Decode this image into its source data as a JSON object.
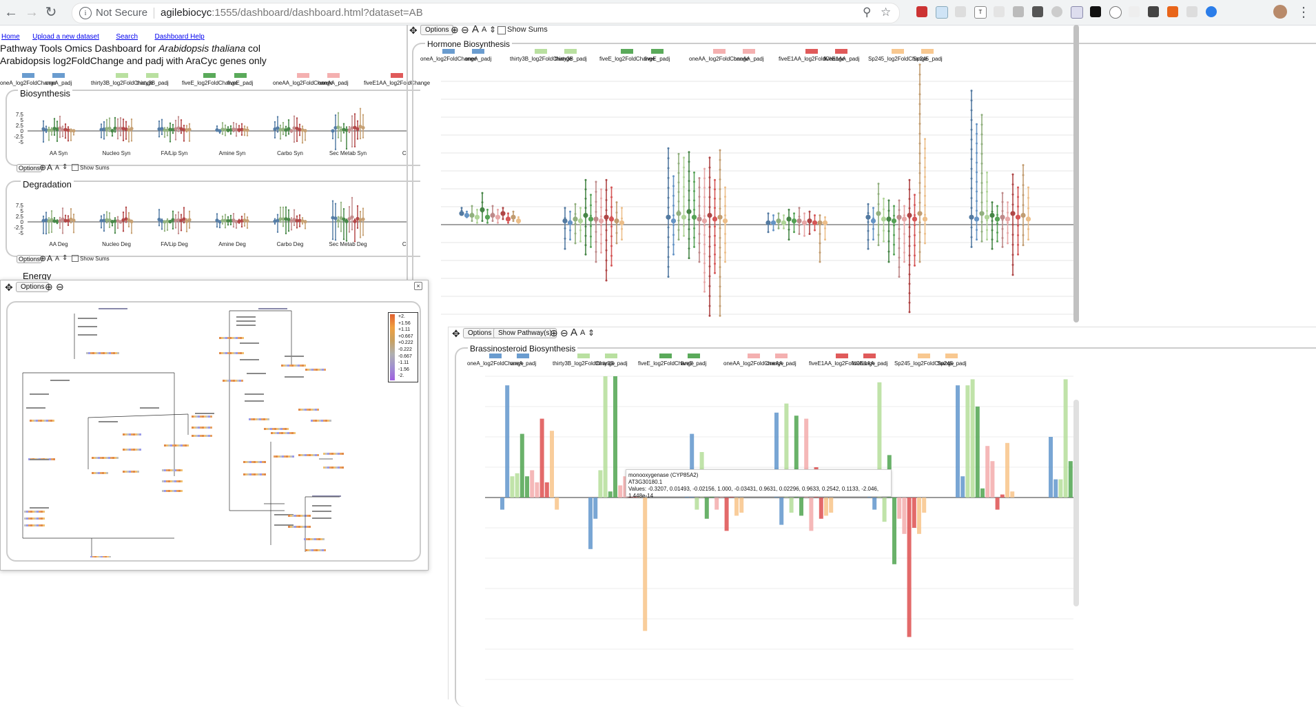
{
  "browser": {
    "security_label": "Not Secure",
    "url_host": "agilebiocyc",
    "url_rest": ":1555/dashboard/dashboard.html?dataset=AB"
  },
  "nav": {
    "home": "Home",
    "upload": "Upload a new dataset",
    "search": "Search",
    "help": "Dashboard Help"
  },
  "page": {
    "title_prefix": "Pathway Tools Omics Dashboard for ",
    "organism": "Arabidopsis thaliana",
    "title_suffix": " col",
    "subtitle": "Arabidopsis log2FoldChange and padj with AraCyc genes only"
  },
  "colors": {
    "oneA_log2FoldChange": "#6a9ccf",
    "oneA_padj": "#6a9ccf",
    "thirty3B_log2FoldChange": "#b9e0a0",
    "thirty3B_padj": "#b9e0a0",
    "fiveE_log2FoldChange": "#5aaa5a",
    "fiveE_padj": "#5aaa5a",
    "oneAA_log2FoldChange": "#f4b0b0",
    "oneAA_padj": "#f4b0b0",
    "fiveE1AA_log2FoldChange": "#e05a5a",
    "fiveE1AA_padj": "#e05a5a",
    "Sp245_log2FoldChange": "#f8c890",
    "Sp245_padj": "#f8c890"
  },
  "legend_main": [
    "oneA_log2FoldChange",
    "oneA_padj",
    "thirty3B_log2FoldChange",
    "thirty3B_padj",
    "fiveE_log2FoldChange",
    "fiveE_padj",
    "oneAA_log2FoldChange",
    "oneAA_padj",
    "fiveE1AA_log2FoldChange"
  ],
  "legend_full": [
    "oneA_log2FoldChange",
    "oneA_padj",
    "thirty3B_log2FoldChange",
    "thirty3B_padj",
    "fiveE_log2FoldChange",
    "fiveE_padj",
    "oneAA_log2FoldChange",
    "oneAA_padj",
    "fiveE1AA_log2FoldChange",
    "fiveE1AA_padj",
    "Sp245_log2FoldChange",
    "Sp245_padj"
  ],
  "biosynthesis": {
    "title": "Biosynthesis",
    "ticks": [
      "7.5",
      "5",
      "2.5",
      "0",
      "-2.5",
      "-5"
    ],
    "categories": [
      "AA Syn",
      "Nucleo Syn",
      "FA/Lip Syn",
      "Amine Syn",
      "Carbo Syn",
      "Sec Metab Syn",
      "Co"
    ]
  },
  "degradation": {
    "title": "Degradation",
    "ticks": [
      "7.5",
      "5",
      "2.5",
      "0",
      "-2.5",
      "-5"
    ],
    "categories": [
      "AA Deg",
      "Nucleo Deg",
      "FA/Lip Deg",
      "Amine Deg",
      "Carbo Deg",
      "Sec Metab Deg",
      "Co"
    ]
  },
  "energy": {
    "title": "Energy"
  },
  "toolbar": {
    "options": "Options",
    "show_sums": "Show Sums",
    "show_pathways": "Show Pathway(s)"
  },
  "hormone": {
    "title": "Hormone Biosynthesis"
  },
  "brassino": {
    "title": "Brassinosteroid Biosynthesis"
  },
  "tooltip": {
    "line1": "monooxygenase (CYP85A2)",
    "line2": "AT3G30180.1",
    "line3": "Values: -0.3207, 0.01493, -0.02156, 1.000, -0.03431, 0.9631, 0.02296, 0.9633, 0.2542, 0.1133, -2.046, 1.448e-14"
  },
  "color_scale": [
    "+2.",
    "+1.56",
    "+1.11",
    "+0.667",
    "+0.222",
    "-0.222",
    "-0.667",
    "-1.11",
    "-1.56",
    "-2."
  ],
  "chart_data": [
    {
      "type": "scatter",
      "title": "Hormone Biosynthesis",
      "series_names": [
        "oneA_log2FoldChange",
        "oneA_padj",
        "thirty3B_log2FoldChange",
        "thirty3B_padj",
        "fiveE_log2FoldChange",
        "fiveE_padj",
        "oneAA_log2FoldChange",
        "oneAA_padj",
        "fiveE1AA_log2FoldChange",
        "fiveE1AA_padj",
        "Sp245_log2FoldChange",
        "Sp245_padj"
      ],
      "groups": [
        {
          "min": [
            0.6,
            0.4,
            0.2,
            0.1,
            0.2,
            0.1,
            0.2,
            0.1,
            0.3,
            0.1,
            0.2,
            0.1
          ],
          "max": [
            0.9,
            0.7,
            1.0,
            0.8,
            1.7,
            0.8,
            1.0,
            0.8,
            0.9,
            0.6,
            0.7,
            0.4
          ],
          "mid": [
            0.6,
            0.5,
            0.5,
            0.4,
            0.8,
            0.4,
            0.5,
            0.4,
            0.6,
            0.3,
            0.4,
            0.2
          ]
        },
        {
          "min": [
            -1.3,
            -0.8,
            -1.0,
            -0.9,
            -1.6,
            -1.2,
            -2.0,
            -1.5,
            -3.0,
            -2.2,
            -1.0,
            -0.8
          ],
          "max": [
            0.9,
            0.7,
            1.1,
            0.9,
            2.4,
            1.6,
            2.3,
            1.9,
            2.4,
            2.0,
            1.2,
            0.9
          ],
          "mid": [
            0.2,
            0.1,
            0.3,
            0.2,
            0.5,
            0.3,
            0.3,
            0.2,
            0.4,
            0.3,
            0.2,
            0.1
          ]
        },
        {
          "min": [
            -2.8,
            -1.6,
            -0.8,
            -0.6,
            -1.8,
            -1.2,
            -2.0,
            -3.6,
            -4.9,
            -2.6,
            -4.9,
            -2.0
          ],
          "max": [
            4.1,
            2.6,
            3.8,
            3.6,
            3.9,
            2.8,
            2.5,
            3.0,
            3.6,
            2.4,
            4.0,
            2.0
          ],
          "mid": [
            0.4,
            0.2,
            0.6,
            0.4,
            0.7,
            0.4,
            0.3,
            0.2,
            0.5,
            0.3,
            0.4,
            0.2
          ]
        },
        {
          "min": [
            -0.4,
            -0.3,
            -0.2,
            -0.2,
            -0.8,
            -0.4,
            -0.5,
            -0.6,
            -0.5,
            -0.3,
            -2.0,
            -0.8
          ],
          "max": [
            0.6,
            0.5,
            0.6,
            0.5,
            0.8,
            0.6,
            0.9,
            0.6,
            0.7,
            0.5,
            0.5,
            0.4
          ],
          "mid": [
            0.1,
            0.1,
            0.2,
            0.1,
            0.3,
            0.2,
            0.2,
            0.1,
            0.2,
            0.1,
            0.1,
            0.1
          ]
        },
        {
          "min": [
            -1.3,
            -0.8,
            -1.1,
            -0.9,
            -2.0,
            -1.6,
            -2.8,
            -2.0,
            -4.7,
            -2.2,
            -2.0,
            -1.0
          ],
          "max": [
            1.1,
            0.9,
            2.2,
            1.4,
            1.3,
            1.0,
            1.3,
            1.0,
            2.4,
            1.6,
            8.6,
            4.6
          ],
          "mid": [
            0.4,
            0.2,
            0.6,
            0.3,
            0.3,
            0.2,
            0.4,
            0.3,
            0.5,
            0.3,
            0.6,
            0.3
          ]
        },
        {
          "min": [
            -1.2,
            -0.8,
            -0.9,
            -0.8,
            -1.3,
            -0.9,
            -1.2,
            -1.0,
            -2.7,
            -1.6,
            -1.1,
            -0.8
          ],
          "max": [
            7.2,
            5.4,
            5.9,
            2.8,
            1.2,
            1.0,
            1.7,
            1.2,
            2.7,
            2.0,
            3.2,
            2.0
          ],
          "mid": [
            0.4,
            0.3,
            0.6,
            0.4,
            0.5,
            0.3,
            0.4,
            0.3,
            0.6,
            0.4,
            0.5,
            0.3
          ]
        }
      ]
    },
    {
      "type": "bar",
      "title": "Brassinosteroid Biosynthesis",
      "series_names": [
        "oneA_log2FoldChange",
        "oneA_padj",
        "thirty3B_log2FoldChange",
        "thirty3B_padj",
        "fiveE_log2FoldChange",
        "fiveE_padj",
        "oneAA_log2FoldChange",
        "oneAA_padj",
        "fiveE1AA_log2FoldChange",
        "fiveE1AA_padj",
        "Sp245_log2FoldChange",
        "Sp245_padj"
      ],
      "ylim": [
        -2.5,
        2.0
      ],
      "groups": [
        [
          -0.2,
          1.85,
          0.35,
          0.4,
          1.05,
          0.35,
          0.45,
          0.25,
          1.3,
          0.25,
          1.1,
          -0.2
        ],
        [
          -0.85,
          -0.35,
          0.45,
          2.0,
          0.1,
          2.0,
          0.2,
          0.35,
          0.35,
          0.2,
          0.1,
          -2.2
        ],
        [
          0.25,
          1.05,
          -0.2,
          0.75,
          -0.35,
          0.3,
          -0.2,
          0.25,
          -0.55,
          0.2,
          -0.3,
          -0.25
        ],
        [
          1.4,
          -0.45,
          1.55,
          -0.25,
          1.35,
          -0.3,
          1.3,
          -0.55,
          0.5,
          -0.35,
          -0.3,
          -0.25
        ],
        [
          0.3,
          -0.2,
          1.9,
          -0.4,
          0.7,
          -1.1,
          -0.35,
          -0.6,
          -2.3,
          -0.5,
          -0.6,
          -0.25
        ],
        [
          1.85,
          0.35,
          1.85,
          1.95,
          1.5,
          0.15,
          0.85,
          0.6,
          -0.2,
          0.05,
          0.9,
          0.1
        ],
        [
          1.0,
          0.3,
          0.3,
          1.95,
          0.6,
          0.6,
          -0.2,
          0.5,
          0.6,
          0.4,
          1.4,
          0.6
        ]
      ]
    }
  ]
}
